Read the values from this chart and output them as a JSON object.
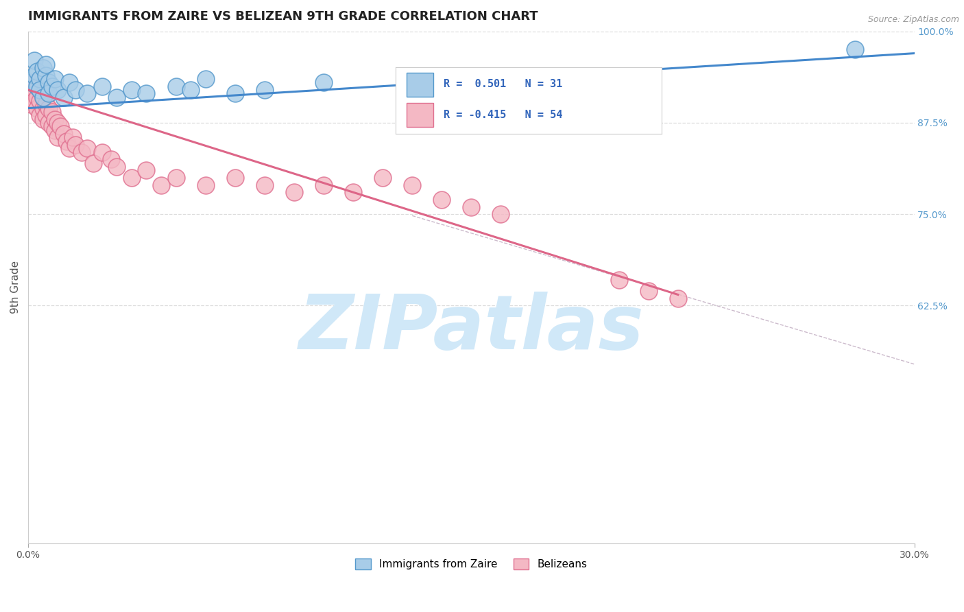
{
  "title": "IMMIGRANTS FROM ZAIRE VS BELIZEAN 9TH GRADE CORRELATION CHART",
  "source_text": "Source: ZipAtlas.com",
  "ylabel": "9th Grade",
  "xlim": [
    0.0,
    0.3
  ],
  "ylim": [
    0.3,
    1.0
  ],
  "ytick_labels": [
    "100.0%",
    "87.5%",
    "75.0%",
    "62.5%"
  ],
  "ytick_vals": [
    1.0,
    0.875,
    0.75,
    0.625
  ],
  "legend_r_blue": "R =  0.501",
  "legend_n_blue": "N = 31",
  "legend_r_pink": "R = -0.415",
  "legend_n_pink": "N = 54",
  "legend_label_blue": "Immigrants from Zaire",
  "legend_label_pink": "Belizeans",
  "blue_color": "#a8cce8",
  "pink_color": "#f4b8c4",
  "blue_edge_color": "#5599cc",
  "pink_edge_color": "#e07090",
  "blue_line_color": "#4488cc",
  "pink_line_color": "#dd6688",
  "gray_dash_color": "#ccbbcc",
  "watermark": "ZIPatlas",
  "watermark_color": "#d0e8f8",
  "background_color": "#ffffff",
  "grid_color": "#dddddd",
  "title_fontsize": 13,
  "blue_x": [
    0.001,
    0.002,
    0.002,
    0.003,
    0.003,
    0.004,
    0.004,
    0.005,
    0.005,
    0.006,
    0.006,
    0.007,
    0.007,
    0.008,
    0.009,
    0.01,
    0.012,
    0.014,
    0.016,
    0.02,
    0.025,
    0.03,
    0.035,
    0.04,
    0.05,
    0.055,
    0.06,
    0.07,
    0.08,
    0.1,
    0.28
  ],
  "blue_y": [
    0.93,
    0.94,
    0.96,
    0.925,
    0.945,
    0.935,
    0.92,
    0.95,
    0.91,
    0.94,
    0.955,
    0.93,
    0.915,
    0.925,
    0.935,
    0.92,
    0.91,
    0.93,
    0.92,
    0.915,
    0.925,
    0.91,
    0.92,
    0.915,
    0.925,
    0.92,
    0.935,
    0.915,
    0.92,
    0.93,
    0.975
  ],
  "pink_x": [
    0.001,
    0.001,
    0.002,
    0.002,
    0.002,
    0.003,
    0.003,
    0.003,
    0.004,
    0.004,
    0.004,
    0.005,
    0.005,
    0.005,
    0.006,
    0.006,
    0.007,
    0.007,
    0.008,
    0.008,
    0.009,
    0.009,
    0.01,
    0.01,
    0.011,
    0.012,
    0.013,
    0.014,
    0.015,
    0.016,
    0.018,
    0.02,
    0.022,
    0.025,
    0.028,
    0.03,
    0.035,
    0.04,
    0.045,
    0.05,
    0.06,
    0.07,
    0.08,
    0.09,
    0.1,
    0.11,
    0.12,
    0.13,
    0.14,
    0.15,
    0.16,
    0.2,
    0.21,
    0.22
  ],
  "pink_y": [
    0.92,
    0.9,
    0.915,
    0.93,
    0.905,
    0.91,
    0.925,
    0.895,
    0.92,
    0.905,
    0.885,
    0.91,
    0.895,
    0.88,
    0.9,
    0.885,
    0.895,
    0.875,
    0.89,
    0.87,
    0.88,
    0.865,
    0.875,
    0.855,
    0.87,
    0.86,
    0.85,
    0.84,
    0.855,
    0.845,
    0.835,
    0.84,
    0.82,
    0.835,
    0.825,
    0.815,
    0.8,
    0.81,
    0.79,
    0.8,
    0.79,
    0.8,
    0.79,
    0.78,
    0.79,
    0.78,
    0.8,
    0.79,
    0.77,
    0.76,
    0.75,
    0.66,
    0.645,
    0.635
  ],
  "blue_line_x0": 0.0,
  "blue_line_y0": 0.895,
  "blue_line_x1": 0.3,
  "blue_line_y1": 0.97,
  "pink_line_x0": 0.0,
  "pink_line_y0": 0.92,
  "pink_line_x1": 0.22,
  "pink_line_y1": 0.64,
  "gray_line_x0": 0.13,
  "gray_line_y0": 0.748,
  "gray_line_x1": 0.3,
  "gray_line_y1": 0.545
}
